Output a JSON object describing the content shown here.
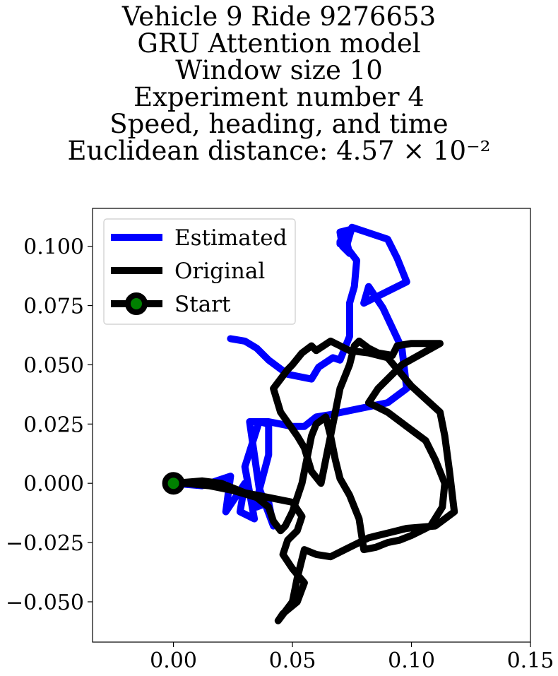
{
  "chart_data": {
    "type": "line",
    "title": [
      "Vehicle 9 Ride 9276653",
      "GRU Attention model",
      "Window size 10",
      "Experiment number 4",
      "Speed, heading, and time",
      "Euclidean distance: 4.57 × 10⁻²"
    ],
    "xlabel": "",
    "ylabel": "",
    "xlim": [
      -0.034,
      0.15
    ],
    "ylim": [
      -0.067,
      0.116
    ],
    "xticks": [
      0.0,
      0.05,
      0.1,
      0.15
    ],
    "xtick_labels": [
      "0.00",
      "0.05",
      "0.10",
      "0.15"
    ],
    "yticks": [
      -0.05,
      -0.025,
      0.0,
      0.025,
      0.05,
      0.075,
      0.1
    ],
    "ytick_labels": [
      "−0.050",
      "−0.025",
      "0.000",
      "0.025",
      "0.050",
      "0.075",
      "0.100"
    ],
    "grid": false,
    "legend_position": "top-left",
    "series": [
      {
        "name": "Estimated",
        "color": "#0000ff",
        "x": [
          0.0,
          0.012,
          0.024,
          0.022,
          0.03,
          0.028,
          0.034,
          0.03,
          0.036,
          0.04,
          0.04,
          0.036,
          0.035,
          0.04,
          0.042,
          0.036,
          0.032,
          0.04,
          0.05,
          0.055,
          0.06,
          0.066,
          0.09,
          0.098,
          0.096,
          0.088,
          0.082,
          0.08,
          0.098,
          0.094,
          0.09,
          0.075,
          0.073,
          0.074,
          0.071,
          0.07,
          0.074,
          0.07,
          0.07,
          0.074,
          0.077,
          0.076,
          0.074,
          0.074,
          0.07,
          0.067,
          0.061,
          0.058,
          0.048,
          0.04,
          0.035,
          0.03,
          0.024
        ],
        "y": [
          0.0,
          -0.001,
          0.003,
          -0.012,
          0.0,
          -0.012,
          -0.015,
          0.007,
          0.026,
          0.025,
          0.012,
          -0.003,
          -0.01,
          -0.008,
          -0.018,
          -0.002,
          0.026,
          0.026,
          0.024,
          0.024,
          0.028,
          0.029,
          0.034,
          0.04,
          0.057,
          0.074,
          0.083,
          0.076,
          0.085,
          0.095,
          0.103,
          0.108,
          0.101,
          0.097,
          0.1,
          0.106,
          0.107,
          0.101,
          0.102,
          0.098,
          0.094,
          0.083,
          0.076,
          0.062,
          0.052,
          0.053,
          0.049,
          0.044,
          0.046,
          0.052,
          0.057,
          0.06,
          0.061
        ]
      },
      {
        "name": "Original",
        "color": "#000000",
        "x": [
          0.0,
          0.012,
          0.02,
          0.03,
          0.04,
          0.05,
          0.054,
          0.052,
          0.048,
          0.046,
          0.05,
          0.055,
          0.052,
          0.046,
          0.044,
          0.05,
          0.052,
          0.055,
          0.06,
          0.066,
          0.072,
          0.078,
          0.082,
          0.086,
          0.09,
          0.098,
          0.11,
          0.118,
          0.116,
          0.114,
          0.112,
          0.1,
          0.09,
          0.082,
          0.074,
          0.066,
          0.06,
          0.058,
          0.054,
          0.05,
          0.048,
          0.042,
          0.045,
          0.052,
          0.055,
          0.058,
          0.062,
          0.064,
          0.066,
          0.068,
          0.07,
          0.074,
          0.076,
          0.078,
          0.082,
          0.086,
          0.092,
          0.094,
          0.1,
          0.112,
          0.096,
          0.086,
          0.082,
          0.09,
          0.098,
          0.106,
          0.11,
          0.114,
          0.113,
          0.108,
          0.1,
          0.095,
          0.09,
          0.085,
          0.08,
          0.078,
          0.074,
          0.07,
          0.068,
          0.066,
          0.064,
          0.06,
          0.058,
          0.056,
          0.054,
          0.052,
          0.05,
          0.047,
          0.045,
          0.042,
          0.04,
          0.035,
          0.025,
          0.015,
          0.005,
          0.0
        ],
        "y": [
          0.0,
          0.001,
          0.0,
          -0.004,
          -0.006,
          -0.008,
          -0.014,
          -0.02,
          -0.024,
          -0.03,
          -0.036,
          -0.042,
          -0.05,
          -0.055,
          -0.058,
          -0.05,
          -0.04,
          -0.028,
          -0.03,
          -0.031,
          -0.028,
          -0.025,
          -0.023,
          -0.022,
          -0.021,
          -0.019,
          -0.018,
          -0.012,
          0.005,
          0.02,
          0.03,
          0.041,
          0.053,
          0.055,
          0.056,
          0.06,
          0.056,
          0.058,
          0.055,
          0.05,
          0.048,
          0.04,
          0.03,
          0.02,
          0.015,
          0.005,
          0.0,
          0.01,
          0.02,
          0.03,
          0.04,
          0.05,
          0.058,
          0.06,
          0.057,
          0.055,
          0.054,
          0.058,
          0.059,
          0.059,
          0.05,
          0.04,
          0.034,
          0.03,
          0.024,
          0.018,
          0.01,
          0.0,
          -0.01,
          -0.018,
          -0.022,
          -0.024,
          -0.025,
          -0.027,
          -0.028,
          -0.015,
          -0.005,
          0.002,
          0.01,
          0.02,
          0.028,
          0.025,
          0.02,
          0.01,
          0.0,
          -0.006,
          -0.012,
          -0.018,
          -0.02,
          -0.016,
          -0.01,
          -0.006,
          -0.003,
          -0.001,
          0.0,
          0.0
        ]
      },
      {
        "name": "Start",
        "color": "#000000",
        "marker_face": "#008000",
        "x": [
          0.0
        ],
        "y": [
          0.0
        ]
      }
    ]
  }
}
